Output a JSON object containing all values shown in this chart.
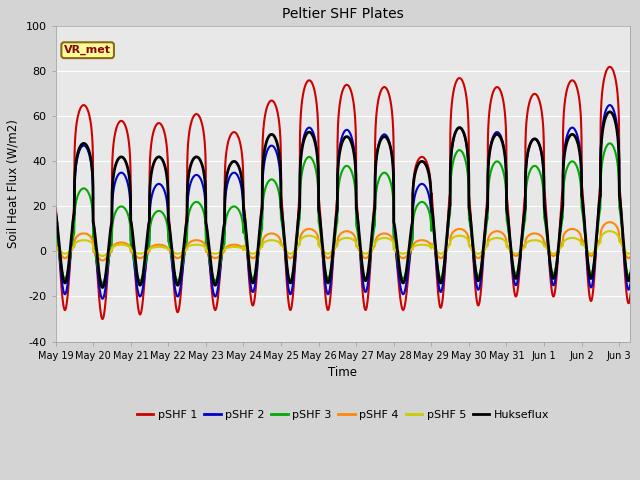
{
  "title": "Peltier SHF Plates",
  "ylabel": "Soil Heat Flux (W/m2)",
  "xlabel": "Time",
  "ylim": [
    -40,
    100
  ],
  "xlim": [
    0,
    15.3
  ],
  "fig_facecolor": "#d4d4d4",
  "ax_facecolor": "#e8e8e8",
  "annotation_text": "VR_met",
  "annotation_bg": "#ffff99",
  "annotation_border": "#8b6914",
  "xtick_labels": [
    "May 19",
    "May 20",
    "May 21",
    "May 22",
    "May 23",
    "May 24",
    "May 25",
    "May 26",
    "May 27",
    "May 28",
    "May 29",
    "May 30",
    "May 31",
    "Jun 1",
    "Jun 2",
    "Jun 3"
  ],
  "series_colors": [
    "#cc0000",
    "#0000cc",
    "#00aa00",
    "#ff8800",
    "#cccc00",
    "#000000"
  ],
  "series_labels": [
    "pSHF 1",
    "pSHF 2",
    "pSHF 3",
    "pSHF 4",
    "pSHF 5",
    "Hukseflux"
  ],
  "series_lw": [
    1.5,
    1.5,
    1.5,
    1.5,
    1.5,
    2.0
  ],
  "peaks_1": [
    65,
    58,
    57,
    61,
    53,
    67,
    76,
    74,
    73,
    42,
    77,
    73,
    70,
    76,
    82,
    82
  ],
  "troughs_1": [
    -26,
    -30,
    -28,
    -27,
    -26,
    -24,
    -26,
    -26,
    -26,
    -26,
    -25,
    -24,
    -20,
    -20,
    -22,
    -23
  ],
  "peaks_2": [
    47,
    35,
    30,
    34,
    35,
    47,
    55,
    54,
    52,
    30,
    55,
    53,
    50,
    55,
    65,
    65
  ],
  "troughs_2": [
    -19,
    -21,
    -20,
    -20,
    -20,
    -18,
    -19,
    -19,
    -18,
    -19,
    -18,
    -17,
    -15,
    -15,
    -16,
    -17
  ],
  "peaks_3": [
    28,
    20,
    18,
    22,
    20,
    32,
    42,
    38,
    35,
    22,
    45,
    40,
    38,
    40,
    48,
    50
  ],
  "troughs_3": [
    -12,
    -14,
    -13,
    -13,
    -13,
    -12,
    -13,
    -12,
    -12,
    -12,
    -12,
    -11,
    -10,
    -10,
    -10,
    -11
  ],
  "peaks_4": [
    8,
    4,
    3,
    5,
    3,
    8,
    10,
    9,
    8,
    5,
    10,
    9,
    8,
    10,
    13,
    15
  ],
  "troughs_4": [
    -3,
    -4,
    -3,
    -3,
    -3,
    -3,
    -3,
    -3,
    -3,
    -3,
    -3,
    -3,
    -2,
    -2,
    -2,
    -3
  ],
  "peaks_5": [
    5,
    3,
    2,
    3,
    2,
    5,
    7,
    6,
    6,
    3,
    7,
    6,
    5,
    6,
    9,
    10
  ],
  "troughs_5": [
    -1,
    -2,
    -1,
    -1,
    -1,
    -1,
    -1,
    -1,
    -1,
    -1,
    -1,
    -1,
    -1,
    -1,
    -1,
    -1
  ],
  "peaks_h": [
    48,
    42,
    42,
    42,
    40,
    52,
    53,
    51,
    51,
    40,
    55,
    52,
    50,
    52,
    62,
    63
  ],
  "troughs_h": [
    -14,
    -16,
    -15,
    -15,
    -15,
    -14,
    -14,
    -14,
    -13,
    -14,
    -14,
    -13,
    -12,
    -12,
    -12,
    -13
  ]
}
